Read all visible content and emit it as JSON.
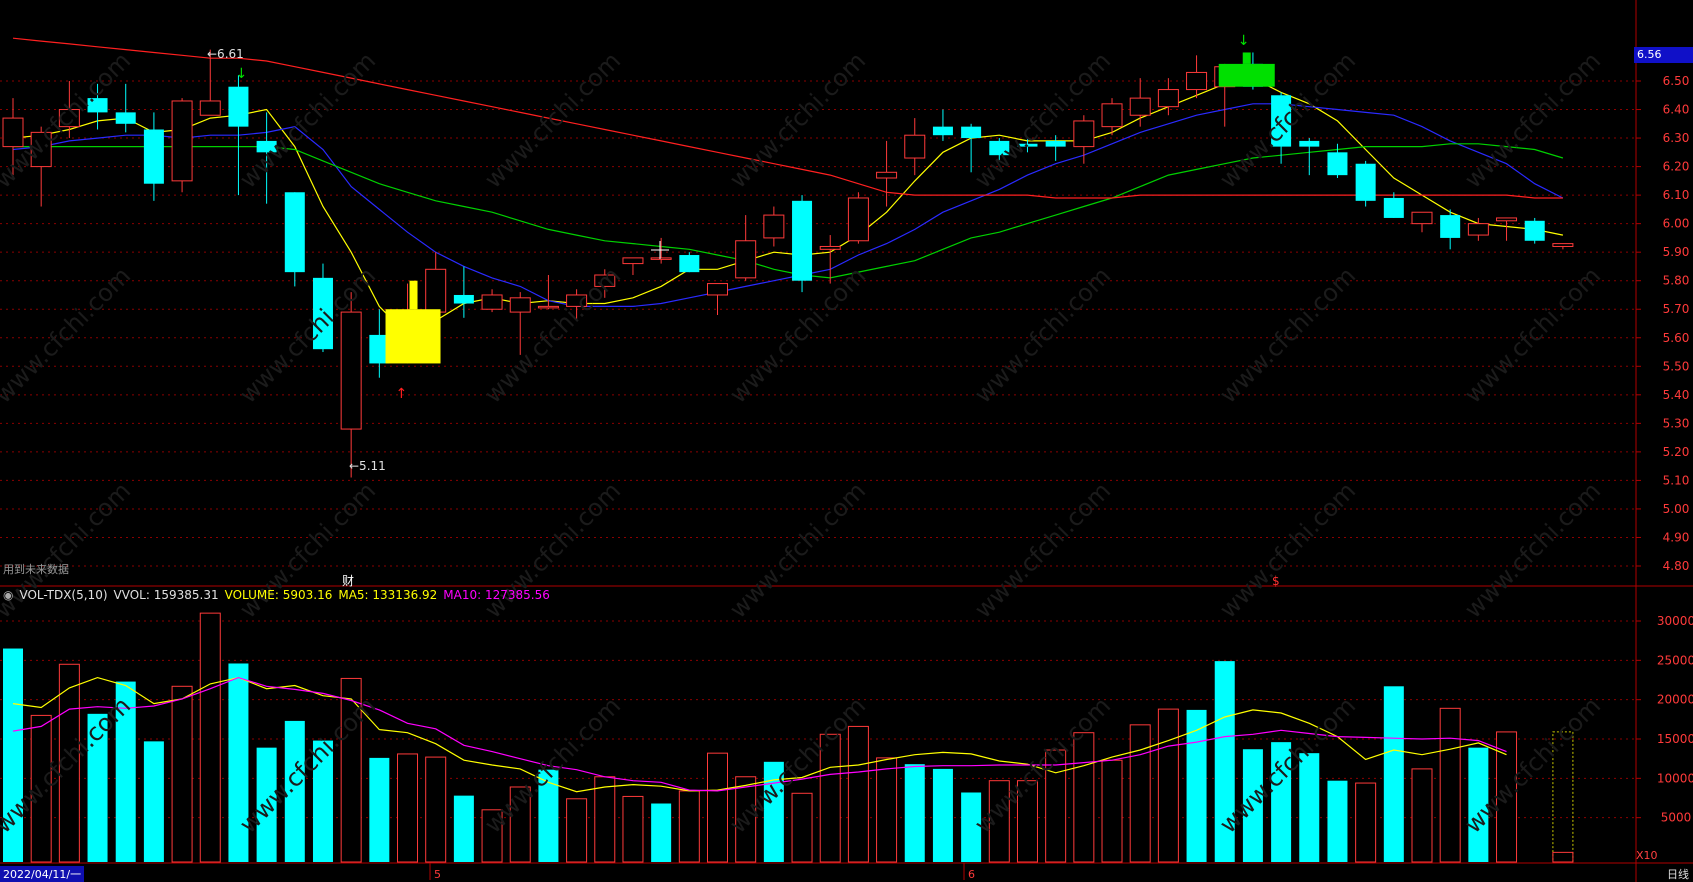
{
  "chart_data": [
    {
      "type": "candlestick",
      "title": "",
      "y_axis_ticks": [
        "6.50",
        "6.40",
        "6.30",
        "6.20",
        "6.10",
        "6.00",
        "5.90",
        "5.80",
        "5.70",
        "5.60",
        "5.50",
        "5.40",
        "5.30",
        "5.20",
        "5.10",
        "5.00",
        "4.90",
        "4.80"
      ],
      "ylim": [
        4.72,
        6.62
      ],
      "last_price_label": "6.56",
      "annotations": {
        "high": "6.61",
        "low": "5.11",
        "future_note": "用到未来数据",
        "marker_cai": "财",
        "marker_s": "$"
      },
      "candles": [
        {
          "o": 6.27,
          "h": 6.44,
          "l": 6.17,
          "c": 6.37
        },
        {
          "o": 6.2,
          "h": 6.34,
          "l": 6.06,
          "c": 6.32
        },
        {
          "o": 6.34,
          "h": 6.5,
          "l": 6.3,
          "c": 6.4
        },
        {
          "o": 6.44,
          "h": 6.49,
          "l": 6.33,
          "c": 6.39
        },
        {
          "o": 6.39,
          "h": 6.49,
          "l": 6.32,
          "c": 6.35
        },
        {
          "o": 6.33,
          "h": 6.39,
          "l": 6.08,
          "c": 6.14
        },
        {
          "o": 6.15,
          "h": 6.44,
          "l": 6.11,
          "c": 6.43
        },
        {
          "o": 6.38,
          "h": 6.61,
          "l": 6.38,
          "c": 6.43
        },
        {
          "o": 6.48,
          "h": 6.52,
          "l": 6.1,
          "c": 6.34
        },
        {
          "o": 6.29,
          "h": 6.39,
          "l": 6.07,
          "c": 6.25
        },
        {
          "o": 6.11,
          "h": 6.11,
          "l": 5.78,
          "c": 5.83
        },
        {
          "o": 5.81,
          "h": 5.86,
          "l": 5.55,
          "c": 5.56
        },
        {
          "o": 5.28,
          "h": 5.76,
          "l": 5.11,
          "c": 5.69
        },
        {
          "o": 5.61,
          "h": 5.7,
          "l": 5.46,
          "c": 5.51
        },
        {
          "o": 5.52,
          "h": 5.79,
          "l": 5.51,
          "c": 5.69
        },
        {
          "o": 5.69,
          "h": 5.9,
          "l": 5.68,
          "c": 5.84
        },
        {
          "o": 5.75,
          "h": 5.85,
          "l": 5.67,
          "c": 5.72
        },
        {
          "o": 5.7,
          "h": 5.77,
          "l": 5.69,
          "c": 5.75
        },
        {
          "o": 5.69,
          "h": 5.76,
          "l": 5.54,
          "c": 5.74
        },
        {
          "o": 5.71,
          "h": 5.82,
          "l": 5.7,
          "c": 5.71
        },
        {
          "o": 5.71,
          "h": 5.77,
          "l": 5.66,
          "c": 5.75
        },
        {
          "o": 5.78,
          "h": 5.84,
          "l": 5.74,
          "c": 5.82
        },
        {
          "o": 5.86,
          "h": 5.88,
          "l": 5.82,
          "c": 5.88
        },
        {
          "o": 5.88,
          "h": 5.95,
          "l": 5.86,
          "c": 5.88
        },
        {
          "o": 5.89,
          "h": 5.9,
          "l": 5.83,
          "c": 5.83
        },
        {
          "o": 5.75,
          "h": 5.79,
          "l": 5.68,
          "c": 5.79
        },
        {
          "o": 5.81,
          "h": 6.03,
          "l": 5.8,
          "c": 5.94
        },
        {
          "o": 5.95,
          "h": 6.06,
          "l": 5.92,
          "c": 6.03
        },
        {
          "o": 6.08,
          "h": 6.1,
          "l": 5.76,
          "c": 5.8
        },
        {
          "o": 5.91,
          "h": 5.96,
          "l": 5.79,
          "c": 5.92
        },
        {
          "o": 5.94,
          "h": 6.11,
          "l": 5.93,
          "c": 6.09
        },
        {
          "o": 6.16,
          "h": 6.29,
          "l": 6.06,
          "c": 6.18
        },
        {
          "o": 6.23,
          "h": 6.37,
          "l": 6.17,
          "c": 6.31
        },
        {
          "o": 6.34,
          "h": 6.4,
          "l": 6.29,
          "c": 6.31
        },
        {
          "o": 6.34,
          "h": 6.35,
          "l": 6.18,
          "c": 6.3
        },
        {
          "o": 6.29,
          "h": 6.3,
          "l": 6.22,
          "c": 6.24
        },
        {
          "o": 6.28,
          "h": 6.3,
          "l": 6.25,
          "c": 6.27
        },
        {
          "o": 6.29,
          "h": 6.31,
          "l": 6.22,
          "c": 6.27
        },
        {
          "o": 6.27,
          "h": 6.38,
          "l": 6.21,
          "c": 6.36
        },
        {
          "o": 6.34,
          "h": 6.44,
          "l": 6.31,
          "c": 6.42
        },
        {
          "o": 6.38,
          "h": 6.51,
          "l": 6.34,
          "c": 6.44
        },
        {
          "o": 6.41,
          "h": 6.51,
          "l": 6.38,
          "c": 6.47
        },
        {
          "o": 6.47,
          "h": 6.59,
          "l": 6.44,
          "c": 6.53
        },
        {
          "o": 6.48,
          "h": 6.56,
          "l": 6.34,
          "c": 6.55
        },
        {
          "o": 6.56,
          "h": 6.6,
          "l": 6.47,
          "c": 6.48
        },
        {
          "o": 6.45,
          "h": 6.46,
          "l": 6.21,
          "c": 6.27
        },
        {
          "o": 6.29,
          "h": 6.3,
          "l": 6.17,
          "c": 6.27
        },
        {
          "o": 6.25,
          "h": 6.28,
          "l": 6.16,
          "c": 6.17
        },
        {
          "o": 6.21,
          "h": 6.22,
          "l": 6.06,
          "c": 6.08
        },
        {
          "o": 6.09,
          "h": 6.11,
          "l": 6.02,
          "c": 6.02
        },
        {
          "o": 6.0,
          "h": 6.04,
          "l": 5.97,
          "c": 6.04
        },
        {
          "o": 6.03,
          "h": 6.05,
          "l": 5.91,
          "c": 5.95
        },
        {
          "o": 5.96,
          "h": 6.02,
          "l": 5.94,
          "c": 6.0
        },
        {
          "o": 6.01,
          "h": 6.02,
          "l": 5.94,
          "c": 6.02
        },
        {
          "o": 6.01,
          "h": 6.02,
          "l": 5.93,
          "c": 5.94
        },
        {
          "o": 5.92,
          "h": 5.93,
          "l": 5.91,
          "c": 5.93
        }
      ],
      "moving_averages": [
        {
          "name": "MA5",
          "color": "#ffff00",
          "values": [
            6.3,
            6.31,
            6.33,
            6.36,
            6.37,
            6.32,
            6.33,
            6.37,
            6.38,
            6.4,
            6.27,
            6.06,
            5.9,
            5.71,
            5.61,
            5.66,
            5.72,
            5.74,
            5.72,
            5.73,
            5.72,
            5.72,
            5.74,
            5.78,
            5.84,
            5.84,
            5.87,
            5.9,
            5.89,
            5.9,
            5.96,
            6.04,
            6.15,
            6.25,
            6.3,
            6.31,
            6.29,
            6.29,
            6.29,
            6.32,
            6.37,
            6.41,
            6.45,
            6.49,
            6.51,
            6.46,
            6.42,
            6.36,
            6.26,
            6.16,
            6.1,
            6.04,
            6.0,
            5.99,
            5.98,
            5.96
          ]
        },
        {
          "name": "MA10",
          "color": "#2a2aff",
          "values": [
            6.26,
            6.27,
            6.29,
            6.3,
            6.31,
            6.31,
            6.3,
            6.31,
            6.31,
            6.32,
            6.34,
            6.26,
            6.13,
            6.05,
            5.97,
            5.9,
            5.85,
            5.81,
            5.78,
            5.73,
            5.71,
            5.71,
            5.71,
            5.72,
            5.74,
            5.76,
            5.78,
            5.8,
            5.82,
            5.84,
            5.89,
            5.93,
            5.98,
            6.04,
            6.08,
            6.12,
            6.17,
            6.21,
            6.24,
            6.28,
            6.32,
            6.35,
            6.38,
            6.4,
            6.42,
            6.42,
            6.41,
            6.4,
            6.39,
            6.38,
            6.34,
            6.29,
            6.25,
            6.21,
            6.14,
            6.09
          ]
        },
        {
          "name": "MA20",
          "color": "#00d000",
          "values": [
            6.27,
            6.27,
            6.27,
            6.27,
            6.27,
            6.27,
            6.27,
            6.27,
            6.27,
            6.27,
            6.26,
            6.22,
            6.18,
            6.14,
            6.11,
            6.08,
            6.06,
            6.04,
            6.01,
            5.98,
            5.96,
            5.94,
            5.93,
            5.92,
            5.91,
            5.89,
            5.87,
            5.84,
            5.82,
            5.81,
            5.83,
            5.85,
            5.87,
            5.91,
            5.95,
            5.97,
            6.0,
            6.03,
            6.06,
            6.09,
            6.13,
            6.17,
            6.19,
            6.21,
            6.23,
            6.24,
            6.25,
            6.26,
            6.27,
            6.27,
            6.27,
            6.28,
            6.28,
            6.27,
            6.26,
            6.23
          ]
        },
        {
          "name": "MA60",
          "color": "#ff2020",
          "values": [
            6.65,
            6.64,
            6.63,
            6.62,
            6.61,
            6.6,
            6.59,
            6.58,
            6.58,
            6.57,
            6.55,
            6.53,
            6.51,
            6.49,
            6.47,
            6.45,
            6.43,
            6.41,
            6.39,
            6.37,
            6.35,
            6.33,
            6.31,
            6.29,
            6.27,
            6.25,
            6.23,
            6.21,
            6.19,
            6.17,
            6.14,
            6.11,
            6.1,
            6.1,
            6.1,
            6.1,
            6.1,
            6.09,
            6.09,
            6.09,
            6.1,
            6.1,
            6.1,
            6.1,
            6.1,
            6.1,
            6.1,
            6.1,
            6.1,
            6.1,
            6.1,
            6.1,
            6.1,
            6.1,
            6.09,
            6.09
          ]
        }
      ]
    },
    {
      "type": "bar",
      "title": "VOL-TDX(5,10)",
      "legend": {
        "name": "VOL-TDX(5,10)",
        "vvol": "VVOL: 159385.31",
        "volume": "VOLUME: 5903.16",
        "ma5": "MA5: 133136.92",
        "ma10": "MA10: 127385.56"
      },
      "y_axis_ticks": [
        "30000",
        "25000",
        "20000",
        "15000",
        "10000",
        "5000"
      ],
      "ylim": [
        0,
        32000
      ],
      "scale_note": "X10",
      "values": [
        26500,
        18000,
        24500,
        18200,
        22300,
        14700,
        21700,
        31000,
        24600,
        13900,
        17300,
        14800,
        22700,
        12600,
        13100,
        12700,
        7800,
        6000,
        8900,
        11100,
        7400,
        10200,
        7700,
        6800,
        8400,
        13200,
        10200,
        12100,
        8100,
        15600,
        16600,
        12600,
        11800,
        11200,
        8200,
        9700,
        9700,
        13600,
        15800,
        12300,
        16800,
        18800,
        18700,
        24900,
        13700,
        14600,
        13200,
        9700,
        9400,
        21700,
        11200,
        18900,
        13900,
        15900
      ],
      "bar_colors": [
        "up",
        "down",
        "down",
        "up",
        "up",
        "up",
        "down",
        "down",
        "up",
        "up",
        "up",
        "up",
        "down",
        "up",
        "down",
        "down",
        "up",
        "down",
        "down",
        "up",
        "down",
        "down",
        "down",
        "up",
        "down",
        "down",
        "down",
        "up",
        "down",
        "down",
        "down",
        "down",
        "up",
        "up",
        "up",
        "down",
        "down",
        "down",
        "down",
        "down",
        "down",
        "down",
        "up",
        "up",
        "up",
        "up",
        "up",
        "up",
        "down",
        "up",
        "down",
        "down",
        "up",
        "down"
      ],
      "ma5": [
        19500,
        19000,
        21500,
        22800,
        21800,
        19500,
        20100,
        22000,
        22800,
        21400,
        21800,
        20500,
        20100,
        16200,
        15800,
        14400,
        12300,
        11700,
        11200,
        9500,
        8300,
        8900,
        9200,
        9000,
        8400,
        8500,
        9100,
        9800,
        10100,
        11400,
        11700,
        12400,
        13000,
        13300,
        13100,
        12200,
        11800,
        10700,
        11600,
        12700,
        13600,
        14800,
        16100,
        17800,
        18700,
        18300,
        17000,
        15300,
        12400,
        13600,
        13000,
        13700,
        14500,
        13000
      ],
      "ma10": [
        16000,
        16600,
        18800,
        19100,
        18900,
        19200,
        20100,
        21400,
        22800,
        21700,
        21300,
        20800,
        19900,
        18700,
        17000,
        16300,
        14200,
        13400,
        12500,
        11600,
        11100,
        10200,
        9700,
        9500,
        8500,
        8400,
        8900,
        9400,
        9900,
        10500,
        10800,
        11200,
        11500,
        11600,
        11600,
        11700,
        11700,
        11700,
        12000,
        12300,
        13000,
        14100,
        14600,
        15300,
        15600,
        16100,
        15700,
        15300,
        15200,
        15100,
        15000,
        15100,
        14800,
        13400
      ]
    }
  ],
  "ui": {
    "date_start": "2022/04/11/一",
    "month_label_5": "5",
    "month_label_6": "6",
    "period": "日线"
  },
  "colors": {
    "up": "#ff3a3a",
    "down": "#00ffff",
    "grid": "#8b0000",
    "axis_text": "#ff3a3a",
    "vvol": "#e0e0e0",
    "volume": "#ffff00",
    "ma10": "#ff00ff"
  }
}
